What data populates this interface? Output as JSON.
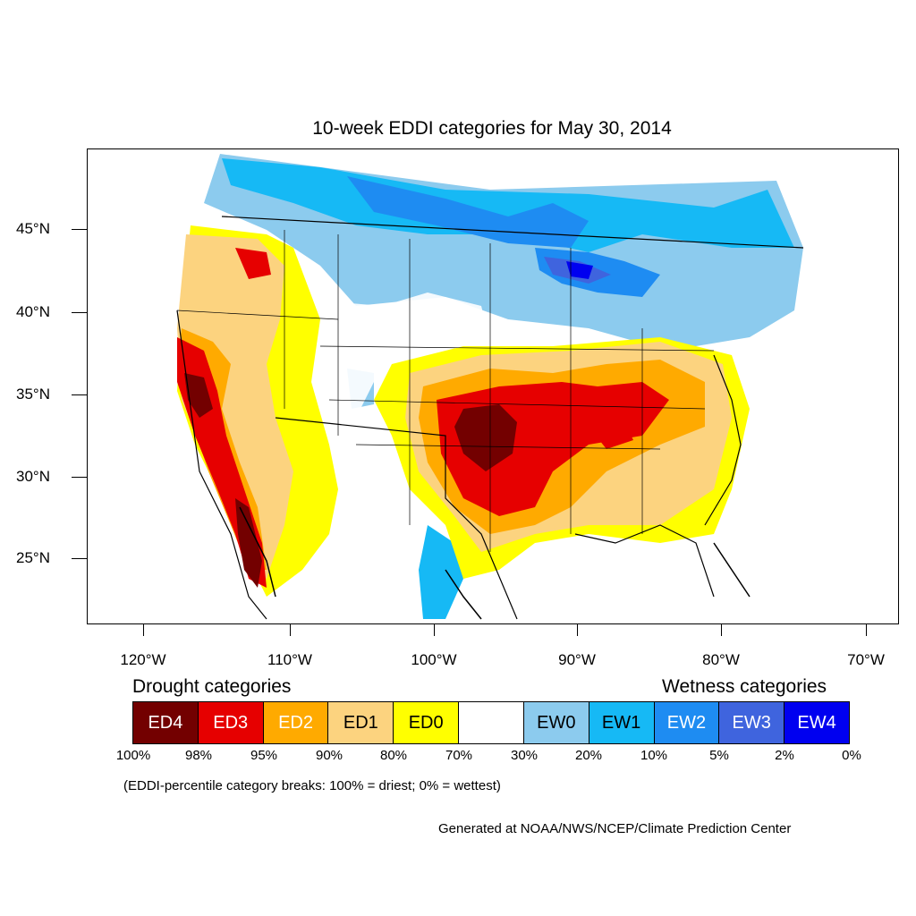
{
  "title": "10-week EDDI categories for May 30, 2014",
  "latitude_labels": [
    "45°N",
    "40°N",
    "35°N",
    "30°N",
    "25°N"
  ],
  "longitude_labels": [
    "120°W",
    "110°W",
    "100°W",
    "90°W",
    "80°W",
    "70°W"
  ],
  "legend": {
    "drought_heading": "Drought categories",
    "wetness_heading": "Wetness categories",
    "categories": [
      {
        "label": "ED4",
        "color": "#730000",
        "text_color": "#ffffff"
      },
      {
        "label": "ED3",
        "color": "#e60000",
        "text_color": "#ffffff"
      },
      {
        "label": "ED2",
        "color": "#ffaa00",
        "text_color": "#ffffff"
      },
      {
        "label": "ED1",
        "color": "#fcd37f",
        "text_color": "#000000"
      },
      {
        "label": "ED0",
        "color": "#ffff00",
        "text_color": "#000000"
      },
      {
        "label": "",
        "color": "#ffffff",
        "text_color": "#000000"
      },
      {
        "label": "EW0",
        "color": "#8ccbee",
        "text_color": "#000000"
      },
      {
        "label": "EW1",
        "color": "#16b9f5",
        "text_color": "#000000"
      },
      {
        "label": "EW2",
        "color": "#1e8cf2",
        "text_color": "#ffffff"
      },
      {
        "label": "EW3",
        "color": "#3f64de",
        "text_color": "#ffffff"
      },
      {
        "label": "EW4",
        "color": "#0000f0",
        "text_color": "#ffffff"
      }
    ],
    "breaks": [
      "100%",
      "98%",
      "95%",
      "90%",
      "80%",
      "70%",
      "30%",
      "20%",
      "10%",
      "5%",
      "2%",
      "0%"
    ]
  },
  "note": "(EDDI-percentile category breaks: 100% = driest; 0% = wettest)",
  "credit": "Generated at NOAA/NWS/NCEP/Climate Prediction Center"
}
